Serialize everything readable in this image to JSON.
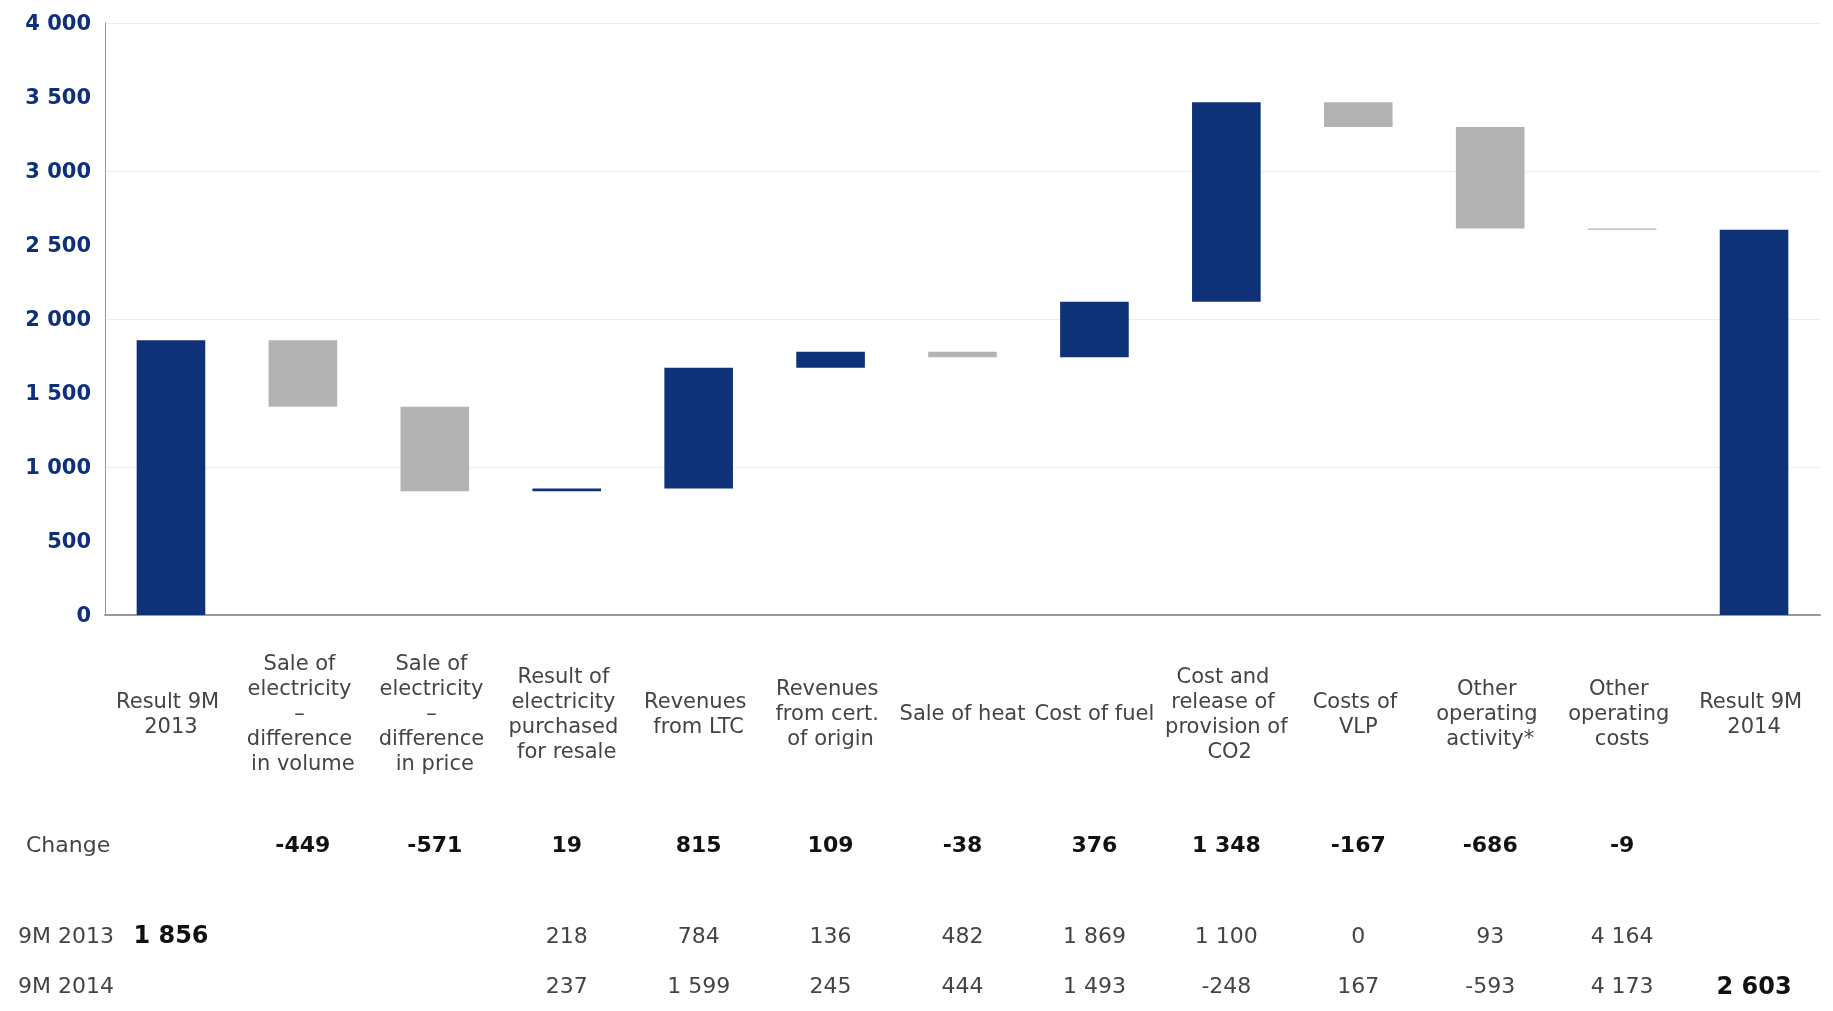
{
  "chart_data": [
    {
      "type": "bar",
      "categories": [
        "Result 9M 2013",
        "Sale of electricity – difference in volume",
        "Sale of electricity – difference in price",
        "Result of electricity purchased for resale",
        "Revenues from LTC",
        "Revenues from cert. of origin",
        "Sale of heat",
        "Cost of fuel",
        "Cost and release of provision of CO2",
        "Costs of VLP",
        "Other operating activity*",
        "Other operating costs",
        "Result 9M 2014"
      ],
      "values": [
        1856,
        -449,
        -571,
        19,
        815,
        109,
        -38,
        376,
        1348,
        -167,
        -686,
        -9,
        2603
      ],
      "base": [
        0,
        1856,
        1407,
        836,
        855,
        1670,
        1779,
        1741,
        2117,
        3465,
        3298,
        2612,
        0
      ],
      "colors": [
        "#0e3178",
        "#b3b3b3",
        "#b3b3b3",
        "#0e3178",
        "#0e3178",
        "#0e3178",
        "#b3b3b3",
        "#0e3178",
        "#0e3178",
        "#b3b3b3",
        "#b3b3b3",
        "#b3b3b3",
        "#0e3178"
      ],
      "value_labels": [
        null,
        "-449",
        "-571",
        "19",
        "815",
        "109",
        "-38",
        "376",
        "1 348",
        "-167",
        "-686",
        "-9",
        null
      ],
      "annotations": [
        "Change"
      ],
      "ylim": [
        0,
        4000
      ],
      "yticks": [
        {
          "value": 0,
          "label": "0"
        },
        {
          "value": 500,
          "label": "500"
        },
        {
          "value": 1000,
          "label": "1 000"
        },
        {
          "value": 1500,
          "label": "1 500"
        },
        {
          "value": 2000,
          "label": "2 000"
        },
        {
          "value": 2500,
          "label": "2 500"
        },
        {
          "value": 3000,
          "label": "3 000"
        },
        {
          "value": 3500,
          "label": "3 500"
        },
        {
          "value": 4000,
          "label": "4 000"
        }
      ],
      "grid": "y"
    },
    {
      "type": "heatmap",
      "categories": [
        null,
        null,
        null,
        null,
        null,
        null,
        null,
        null,
        null,
        null,
        null,
        null,
        null
      ],
      "y_categories": [
        "9M 2013",
        "9M 2014"
      ],
      "cells": [
        [
          1856,
          null,
          null,
          218,
          784,
          136,
          482,
          1869,
          1100,
          0,
          93,
          4164,
          null
        ],
        [
          null,
          null,
          null,
          237,
          1599,
          245,
          444,
          1493,
          -248,
          167,
          -593,
          4173,
          2603
        ]
      ],
      "data_labels": true
    }
  ]
}
